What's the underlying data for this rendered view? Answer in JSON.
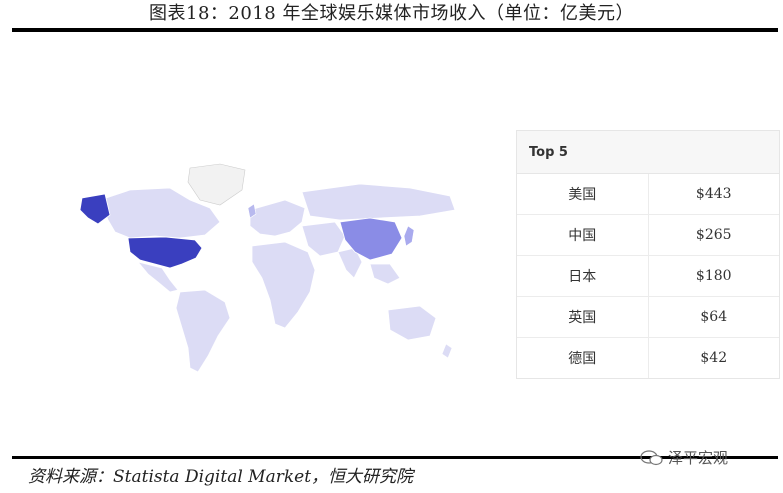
{
  "title": "图表18：2018 年全球娱乐媒体市场收入（单位：亿美元）",
  "source": "资料来源：Statista Digital Market，恒大研究院",
  "watermark": "泽平宏观",
  "colors": {
    "high": "#3a3fbf",
    "mid": "#8a8ce6",
    "low": "#dcdcf5",
    "none": "#f2f2f2",
    "border": "#ffffff"
  },
  "chart_data": {
    "type": "table",
    "header": "Top 5",
    "rows": [
      {
        "country": "美国",
        "value": "$443"
      },
      {
        "country": "中国",
        "value": "$265"
      },
      {
        "country": "日本",
        "value": "$180"
      },
      {
        "country": "英国",
        "value": "$64"
      },
      {
        "country": "德国",
        "value": "$42"
      }
    ],
    "values": [
      443,
      265,
      180,
      64,
      42
    ]
  }
}
